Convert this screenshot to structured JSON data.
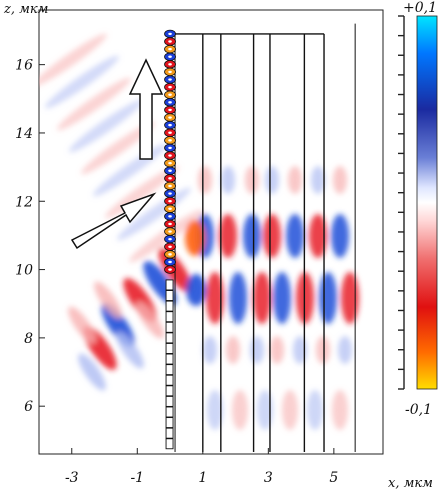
{
  "chart_data": {
    "type": "heatmap",
    "xlabel": "x, мкм",
    "ylabel": "z, мкм",
    "x_ticks": [
      "-3",
      "-1",
      "1",
      "3",
      "5"
    ],
    "x_tick_values": [
      -3,
      -1,
      1,
      3,
      5
    ],
    "y_ticks": [
      "6",
      "8",
      "10",
      "12",
      "14",
      "16"
    ],
    "y_tick_values": [
      6,
      8,
      10,
      12,
      14,
      16
    ],
    "xlim": [
      -4.0,
      6.5
    ],
    "ylim": [
      4.6,
      17.6
    ],
    "colorbar": {
      "max_label": "+0,1",
      "min_label": "-0,1",
      "max": 0.1,
      "min": -0.1,
      "colors": [
        "#00e5ff",
        "#0077ff",
        "#1a2aa0",
        "#6a7fd6",
        "#dfe6ff",
        "#ffffff",
        "#ffd6d6",
        "#f07070",
        "#e01010",
        "#ff6a00",
        "#ffdd00"
      ]
    },
    "vertical_lines_x": [
      1.0,
      1.55,
      2.55,
      3.05,
      4.1,
      4.7
    ],
    "top_line_z": 16.9,
    "right_line_x": 5.65,
    "grating_x": 0.0,
    "arrows": [
      "oblique",
      "vertical"
    ]
  }
}
